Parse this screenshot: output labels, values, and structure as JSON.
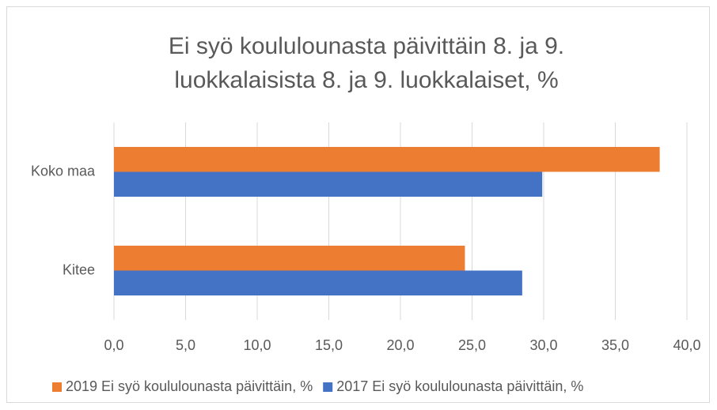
{
  "chart_data": {
    "type": "hbar",
    "title": [
      "Ei syö koululounasta päivittäin 8. ja 9.",
      "luokkalaisista 8. ja 9. luokkalaiset, %"
    ],
    "categories": [
      "Koko maa",
      "Kitee"
    ],
    "series": [
      {
        "name": "2019 Ei syö koululounasta päivittäin, %",
        "color": "#ed7d31",
        "values": [
          38.1,
          24.5
        ]
      },
      {
        "name": "2017 Ei syö koululounasta päivittäin, %",
        "color": "#4472c4",
        "values": [
          29.9,
          28.5
        ]
      }
    ],
    "xlim": [
      0,
      40
    ],
    "xticks": [
      {
        "value": 0,
        "label": "0,0"
      },
      {
        "value": 5,
        "label": "5,0"
      },
      {
        "value": 10,
        "label": "10,0"
      },
      {
        "value": 15,
        "label": "15,0"
      },
      {
        "value": 20,
        "label": "20,0"
      },
      {
        "value": 25,
        "label": "25,0"
      },
      {
        "value": 30,
        "label": "30,0"
      },
      {
        "value": 35,
        "label": "35,0"
      },
      {
        "value": 40,
        "label": "40,0"
      }
    ],
    "grid": true,
    "legend": "bottom"
  }
}
